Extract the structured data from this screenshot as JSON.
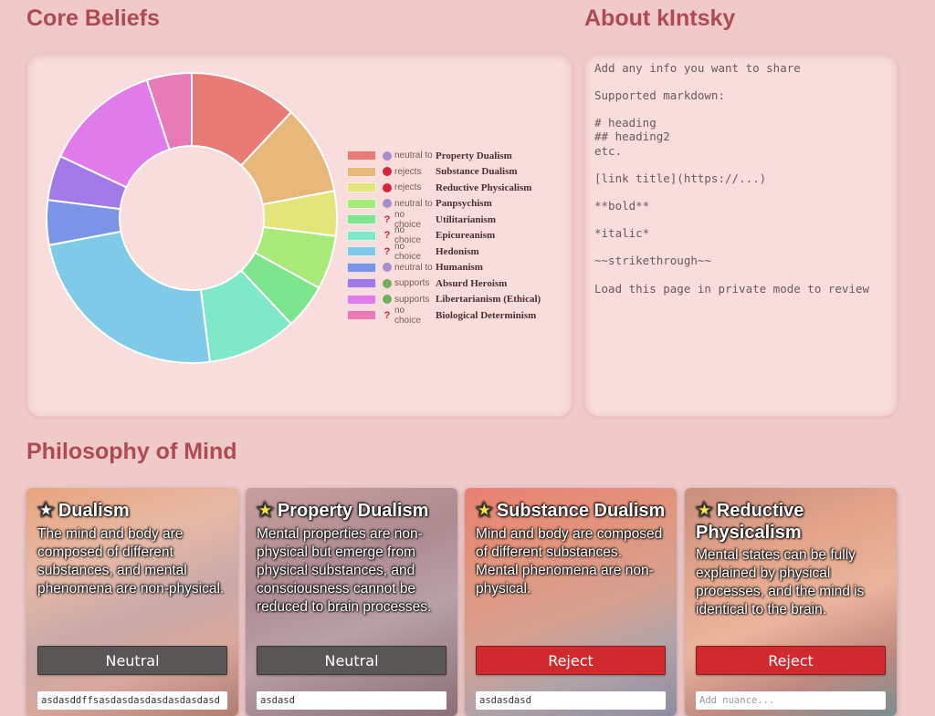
{
  "core_beliefs": {
    "title": "Core Beliefs"
  },
  "about": {
    "title": "About kIntsky",
    "body": "Add any info you want to share\n\nSupported markdown:\n\n# heading\n## heading2\netc.\n\n[link title](https://...)\n\n**bold**\n\n*italic*\n\n~~strikethrough~~\n\nLoad this page in private mode to review"
  },
  "philosophy": {
    "title": "Philosophy of Mind"
  },
  "chart_data": {
    "type": "pie",
    "donut": true,
    "legend_position": "right",
    "slices": [
      {
        "label": "Property Dualism",
        "value": 12,
        "color": "#e97b76",
        "stance": "neutral to",
        "stance_color": "#a48fd0"
      },
      {
        "label": "Substance Dualism",
        "value": 10,
        "color": "#e8b87a",
        "stance": "rejects",
        "stance_color": "#d9233a"
      },
      {
        "label": "Reductive Physicalism",
        "value": 5,
        "color": "#e3e57a",
        "stance": "rejects",
        "stance_color": "#d9233a"
      },
      {
        "label": "Panpsychism",
        "value": 6,
        "color": "#a7ea78",
        "stance": "neutral to",
        "stance_color": "#a48fd0"
      },
      {
        "label": "Utilitarianism",
        "value": 5,
        "color": "#7de58e",
        "stance": "no choice",
        "stance_color": "#d9233a"
      },
      {
        "label": "Epicureanism",
        "value": 10,
        "color": "#7fe8c8",
        "stance": "no choice",
        "stance_color": "#d9233a"
      },
      {
        "label": "Hedonism",
        "value": 24,
        "color": "#7fcbe7",
        "stance": "no choice",
        "stance_color": "#d9233a"
      },
      {
        "label": "Humanism",
        "value": 5,
        "color": "#7a94e8",
        "stance": "neutral to",
        "stance_color": "#a48fd0"
      },
      {
        "label": "Absurd Heroism",
        "value": 5,
        "color": "#a27ae8",
        "stance": "supports",
        "stance_color": "#6fb05a"
      },
      {
        "label": "Libertarianism (Ethical)",
        "value": 13,
        "color": "#df7ce9",
        "stance": "supports",
        "stance_color": "#6fb05a"
      },
      {
        "label": "Biological Determinism",
        "value": 5,
        "color": "#e87ab8",
        "stance": "no choice",
        "stance_color": "#d9233a"
      }
    ]
  },
  "cards": [
    {
      "name": "Dualism",
      "star": "empty",
      "desc": "The mind and body are composed of different substances, and mental phenomena are non-physical.",
      "stance_label": "Neutral",
      "stance_type": "neutral",
      "nuance_value": "asdasddffsasdasdasdasdasdasdasd",
      "nuance_placeholder": "Add nuance...",
      "bg": "linear-gradient(160deg,#e8a57d 0%,#e7b9a5 30%,#c9a9a8 55%,#d8a79a 75%,#b07d70 100%)"
    },
    {
      "name": "Property Dualism",
      "star": "filled",
      "desc": "Mental properties are non-physical but emerge from physical substances, and consciousness cannot be reduced to brain processes.",
      "stance_label": "Neutral",
      "stance_type": "neutral",
      "nuance_value": "asdasd",
      "nuance_placeholder": "Add nuance...",
      "bg": "linear-gradient(160deg,#c99f9f 0%,#ad8b90 35%,#b8a0a5 60%,#9c8188 85%,#8a6f77 100%)"
    },
    {
      "name": "Substance Dualism",
      "star": "filled",
      "desc": "Mind and body are composed of different substances. Mental phenomena are non-physical.",
      "stance_label": "Reject",
      "stance_type": "reject",
      "nuance_value": "asdasdasd",
      "nuance_placeholder": "Add nuance...",
      "bg": "linear-gradient(160deg,#e8816e 0%,#e2957d 30%,#d6a08f 55%,#b1a4a8 75%,#8f8ba0 100%)"
    },
    {
      "name": "Reductive Physicalism",
      "star": "filled",
      "desc": "Mental states can be fully explained by physical processes, and the mind is identical to the brain.",
      "stance_label": "Reject",
      "stance_type": "reject",
      "nuance_value": "",
      "nuance_placeholder": "Add nuance...",
      "bg": "linear-gradient(160deg,#c88e7d 0%,#e3a48a 30%,#eab49c 55%,#c08a7f 78%,#7a8d92 100%)"
    }
  ]
}
